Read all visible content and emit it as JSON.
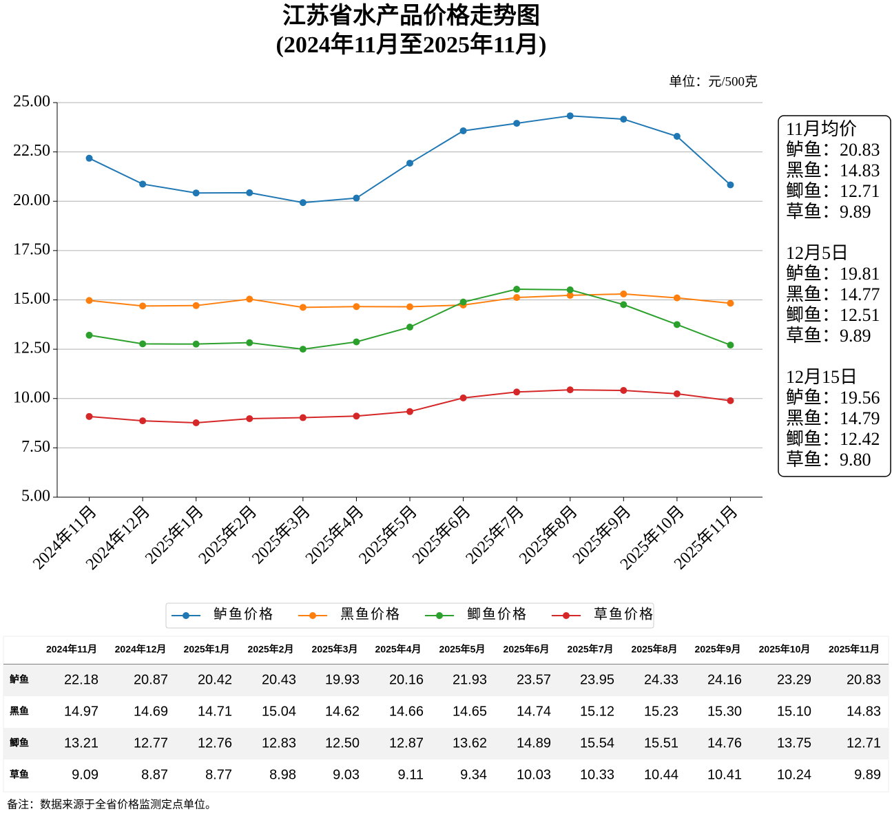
{
  "chart_data": {
    "type": "line",
    "title": "江苏省水产品价格走势图",
    "subtitle": "(2024年11月至2025年11月)",
    "unit_label": "单位：元/500克",
    "categories": [
      "2024年11月",
      "2024年12月",
      "2025年1月",
      "2025年2月",
      "2025年3月",
      "2025年4月",
      "2025年5月",
      "2025年6月",
      "2025年7月",
      "2025年8月",
      "2025年9月",
      "2025年10月",
      "2025年11月"
    ],
    "series": [
      {
        "name": "鲈鱼价格",
        "color": "#1f77b4",
        "values": [
          22.18,
          20.87,
          20.42,
          20.43,
          19.93,
          20.16,
          21.93,
          23.57,
          23.95,
          24.33,
          24.16,
          23.29,
          20.83
        ]
      },
      {
        "name": "黑鱼价格",
        "color": "#ff7f0e",
        "values": [
          14.97,
          14.69,
          14.71,
          15.04,
          14.62,
          14.66,
          14.65,
          14.74,
          15.12,
          15.23,
          15.3,
          15.1,
          14.83
        ]
      },
      {
        "name": "鲫鱼价格",
        "color": "#2ca02c",
        "values": [
          13.21,
          12.77,
          12.76,
          12.83,
          12.5,
          12.87,
          13.62,
          14.89,
          15.54,
          15.51,
          14.76,
          13.75,
          12.71
        ]
      },
      {
        "name": "草鱼价格",
        "color": "#d62728",
        "values": [
          9.09,
          8.87,
          8.77,
          8.98,
          9.03,
          9.11,
          9.34,
          10.03,
          10.33,
          10.44,
          10.41,
          10.24,
          9.89
        ]
      }
    ],
    "ylim": [
      5,
      25
    ],
    "yticks": [
      {
        "value": 5,
        "label": "5.00"
      },
      {
        "value": 7.5,
        "label": "7.50"
      },
      {
        "value": 10,
        "label": "10.00"
      },
      {
        "value": 12.5,
        "label": "12.50"
      },
      {
        "value": 15,
        "label": "15.00"
      },
      {
        "value": 17.5,
        "label": "17.50"
      },
      {
        "value": 20,
        "label": "20.00"
      },
      {
        "value": 22.5,
        "label": "22.50"
      },
      {
        "value": 25,
        "label": "25.00"
      }
    ],
    "grid": true,
    "legend": "bottom",
    "annotations": [
      {
        "title": "11月均价",
        "lines": [
          "鲈鱼：20.83",
          "黑鱼：14.83",
          "鲫鱼：12.71",
          "草鱼：9.89"
        ]
      },
      {
        "title": "12月5日",
        "lines": [
          "鲈鱼：19.81",
          "黑鱼：14.77",
          "鲫鱼：12.51",
          "草鱼：9.89"
        ]
      },
      {
        "title": "12月15日",
        "lines": [
          "鲈鱼：19.56",
          "黑鱼：14.79",
          "鲫鱼：12.42",
          "草鱼：9.80"
        ]
      }
    ]
  },
  "table": {
    "header": [
      "2024年11月",
      "2024年12月",
      "2025年1月",
      "2025年2月",
      "2025年3月",
      "2025年4月",
      "2025年5月",
      "2025年6月",
      "2025年7月",
      "2025年8月",
      "2025年9月",
      "2025年10月",
      "2025年11月"
    ],
    "rows": [
      {
        "label": "鲈鱼",
        "cells": [
          "22.18",
          "20.87",
          "20.42",
          "20.43",
          "19.93",
          "20.16",
          "21.93",
          "23.57",
          "23.95",
          "24.33",
          "24.16",
          "23.29",
          "20.83"
        ]
      },
      {
        "label": "黑鱼",
        "cells": [
          "14.97",
          "14.69",
          "14.71",
          "15.04",
          "14.62",
          "14.66",
          "14.65",
          "14.74",
          "15.12",
          "15.23",
          "15.30",
          "15.10",
          "14.83"
        ]
      },
      {
        "label": "鲫鱼",
        "cells": [
          "13.21",
          "12.77",
          "12.76",
          "12.83",
          "12.50",
          "12.87",
          "13.62",
          "14.89",
          "15.54",
          "15.51",
          "14.76",
          "13.75",
          "12.71"
        ]
      },
      {
        "label": "草鱼",
        "cells": [
          "9.09",
          "8.87",
          "8.77",
          "8.98",
          "9.03",
          "9.11",
          "9.34",
          "10.03",
          "10.33",
          "10.44",
          "10.41",
          "10.24",
          "9.89"
        ]
      }
    ]
  },
  "footnote": "备注：数据来源于全省价格监测定点单位。"
}
